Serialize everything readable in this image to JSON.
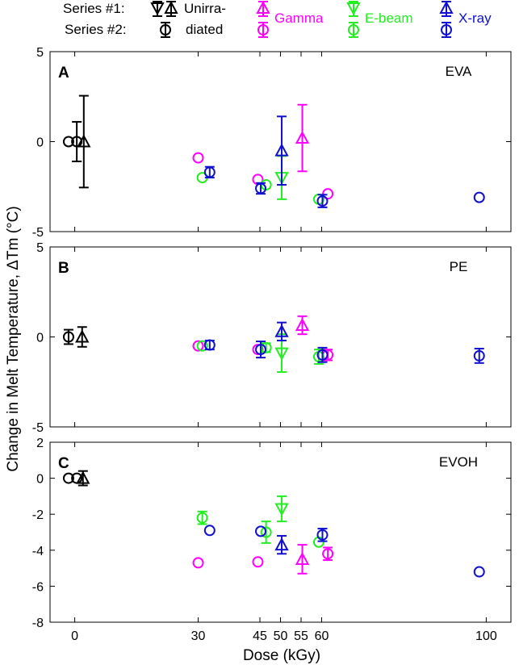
{
  "legend": {
    "series1_label": "Series #1:",
    "series2_label": "Series #2:",
    "unirradiated_line1": "Unirra-",
    "unirradiated_line2": "diated",
    "gamma": "Gamma",
    "ebeam": "E-beam",
    "xray": "X-ray"
  },
  "colors": {
    "unirradiated": "#000000",
    "gamma": "#ff00ff",
    "ebeam": "#22ee22",
    "xray": "#1010d0"
  },
  "ylabel": "Change in Melt Temperature,  ΔTm (°C)",
  "xlabel": "Dose (kGy)",
  "xticks": [
    {
      "value": 0,
      "label": "0"
    },
    {
      "value": 30,
      "label": "30"
    },
    {
      "value": 45,
      "label": "45"
    },
    {
      "value": 50,
      "label": "50"
    },
    {
      "value": 55,
      "label": "55"
    },
    {
      "value": 60,
      "label": "60"
    },
    {
      "value": 100,
      "label": "100"
    }
  ],
  "chart_data": [
    {
      "type": "scatter",
      "panel": "A",
      "material": "EVA",
      "xlim": [
        -6,
        106
      ],
      "ylim": [
        -5,
        5
      ],
      "yticks": [
        -5,
        0,
        5
      ],
      "series": [
        {
          "name": "Unirradiated #2",
          "group": "unirradiated",
          "marker": "circle",
          "points": [
            {
              "x": -1.5,
              "y": 0,
              "err": 0
            },
            {
              "x": 0.5,
              "y": 0,
              "err": 1.1
            }
          ]
        },
        {
          "name": "Unirradiated #1",
          "group": "unirradiated",
          "marker": "triangle-up",
          "points": [
            {
              "x": 2.2,
              "y": 0,
              "err": 2.55
            }
          ]
        },
        {
          "name": "Gamma #2",
          "group": "gamma",
          "marker": "circle",
          "points": [
            {
              "x": 30,
              "y": -0.9,
              "err": 0
            },
            {
              "x": 44.5,
              "y": -2.1,
              "err": 0
            },
            {
              "x": 61.5,
              "y": -2.9,
              "err": 0
            }
          ]
        },
        {
          "name": "Gamma #1",
          "group": "gamma",
          "marker": "triangle-up",
          "points": [
            {
              "x": 55.3,
              "y": 0.2,
              "err": 1.85
            }
          ]
        },
        {
          "name": "E-beam #2",
          "group": "ebeam",
          "marker": "circle",
          "points": [
            {
              "x": 31,
              "y": -2.0,
              "err": 0
            },
            {
              "x": 46.5,
              "y": -2.4,
              "err": 0
            },
            {
              "x": 59.3,
              "y": -3.2,
              "err": 0
            }
          ]
        },
        {
          "name": "E-beam #1",
          "group": "ebeam",
          "marker": "triangle-down",
          "points": [
            {
              "x": 50.3,
              "y": -2.0,
              "err": 1.2
            }
          ]
        },
        {
          "name": "X-ray #2",
          "group": "xray",
          "marker": "circle",
          "points": [
            {
              "x": 32.8,
              "y": -1.7,
              "err": 0.3
            },
            {
              "x": 45.2,
              "y": -2.6,
              "err": 0.3
            },
            {
              "x": 60.2,
              "y": -3.3,
              "err": 0.35
            },
            {
              "x": 98.3,
              "y": -3.1,
              "err": 0
            }
          ]
        },
        {
          "name": "X-ray #1",
          "group": "xray",
          "marker": "triangle-up",
          "points": [
            {
              "x": 50.3,
              "y": -0.5,
              "err": 1.9
            }
          ]
        }
      ]
    },
    {
      "type": "scatter",
      "panel": "B",
      "material": "PE",
      "xlim": [
        -6,
        106
      ],
      "ylim": [
        -5,
        5
      ],
      "yticks": [
        -5,
        0,
        5
      ],
      "series": [
        {
          "name": "Unirradiated #2",
          "group": "unirradiated",
          "marker": "circle",
          "points": [
            {
              "x": -1.5,
              "y": 0,
              "err": 0.4
            }
          ]
        },
        {
          "name": "Unirradiated #1",
          "group": "unirradiated",
          "marker": "triangle-up",
          "points": [
            {
              "x": 1.8,
              "y": 0,
              "err": 0.55
            }
          ]
        },
        {
          "name": "Gamma #2",
          "group": "gamma",
          "marker": "circle",
          "points": [
            {
              "x": 30,
              "y": -0.5,
              "err": 0
            },
            {
              "x": 44.5,
              "y": -0.7,
              "err": 0
            },
            {
              "x": 61.5,
              "y": -1.0,
              "err": 0.3
            }
          ]
        },
        {
          "name": "Gamma #1",
          "group": "gamma",
          "marker": "triangle-up",
          "points": [
            {
              "x": 55.3,
              "y": 0.65,
              "err": 0.5
            }
          ]
        },
        {
          "name": "E-beam #2",
          "group": "ebeam",
          "marker": "circle",
          "points": [
            {
              "x": 31,
              "y": -0.5,
              "err": 0
            },
            {
              "x": 46.5,
              "y": -0.6,
              "err": 0.25
            },
            {
              "x": 59.3,
              "y": -1.1,
              "err": 0.4
            }
          ]
        },
        {
          "name": "E-beam #1",
          "group": "ebeam",
          "marker": "triangle-down",
          "points": [
            {
              "x": 50.3,
              "y": -0.9,
              "err": 1.05
            }
          ]
        },
        {
          "name": "X-ray #2",
          "group": "xray",
          "marker": "circle",
          "points": [
            {
              "x": 32.8,
              "y": -0.45,
              "err": 0.25
            },
            {
              "x": 45.2,
              "y": -0.7,
              "err": 0.45
            },
            {
              "x": 60.2,
              "y": -1.0,
              "err": 0.4
            },
            {
              "x": 98.3,
              "y": -1.05,
              "err": 0.4
            }
          ]
        },
        {
          "name": "X-ray #1",
          "group": "xray",
          "marker": "triangle-up",
          "points": [
            {
              "x": 50.3,
              "y": 0.3,
              "err": 0.5
            }
          ]
        }
      ]
    },
    {
      "type": "scatter",
      "panel": "C",
      "material": "EVOH",
      "xlim": [
        -6,
        106
      ],
      "ylim": [
        -8,
        2
      ],
      "yticks": [
        -8,
        -6,
        -4,
        -2,
        0,
        2
      ],
      "series": [
        {
          "name": "Unirradiated #2",
          "group": "unirradiated",
          "marker": "circle",
          "points": [
            {
              "x": -1.5,
              "y": 0,
              "err": 0
            },
            {
              "x": 0.5,
              "y": 0,
              "err": 0
            }
          ]
        },
        {
          "name": "Unirradiated #1",
          "group": "unirradiated",
          "marker": "triangle-up",
          "points": [
            {
              "x": 2.0,
              "y": 0,
              "err": 0.4
            }
          ]
        },
        {
          "name": "Gamma #2",
          "group": "gamma",
          "marker": "circle",
          "points": [
            {
              "x": 30,
              "y": -4.7,
              "err": 0
            },
            {
              "x": 44.5,
              "y": -4.65,
              "err": 0
            },
            {
              "x": 61.5,
              "y": -4.2,
              "err": 0.35
            }
          ]
        },
        {
          "name": "Gamma #1",
          "group": "gamma",
          "marker": "triangle-up",
          "points": [
            {
              "x": 55.3,
              "y": -4.5,
              "err": 0.8
            }
          ]
        },
        {
          "name": "E-beam #2",
          "group": "ebeam",
          "marker": "circle",
          "points": [
            {
              "x": 31,
              "y": -2.2,
              "err": 0.35
            },
            {
              "x": 46.5,
              "y": -3.0,
              "err": 0.6
            },
            {
              "x": 59.3,
              "y": -3.55,
              "err": 0
            }
          ]
        },
        {
          "name": "E-beam #1",
          "group": "ebeam",
          "marker": "triangle-down",
          "points": [
            {
              "x": 50.3,
              "y": -1.7,
              "err": 0.7
            }
          ]
        },
        {
          "name": "X-ray #2",
          "group": "xray",
          "marker": "circle",
          "points": [
            {
              "x": 32.8,
              "y": -2.9,
              "err": 0
            },
            {
              "x": 45.2,
              "y": -2.95,
              "err": 0
            },
            {
              "x": 60.2,
              "y": -3.15,
              "err": 0.35
            },
            {
              "x": 98.3,
              "y": -5.2,
              "err": 0
            }
          ]
        },
        {
          "name": "X-ray #1",
          "group": "xray",
          "marker": "triangle-up",
          "points": [
            {
              "x": 50.3,
              "y": -3.7,
              "err": 0.5
            }
          ]
        }
      ]
    }
  ]
}
